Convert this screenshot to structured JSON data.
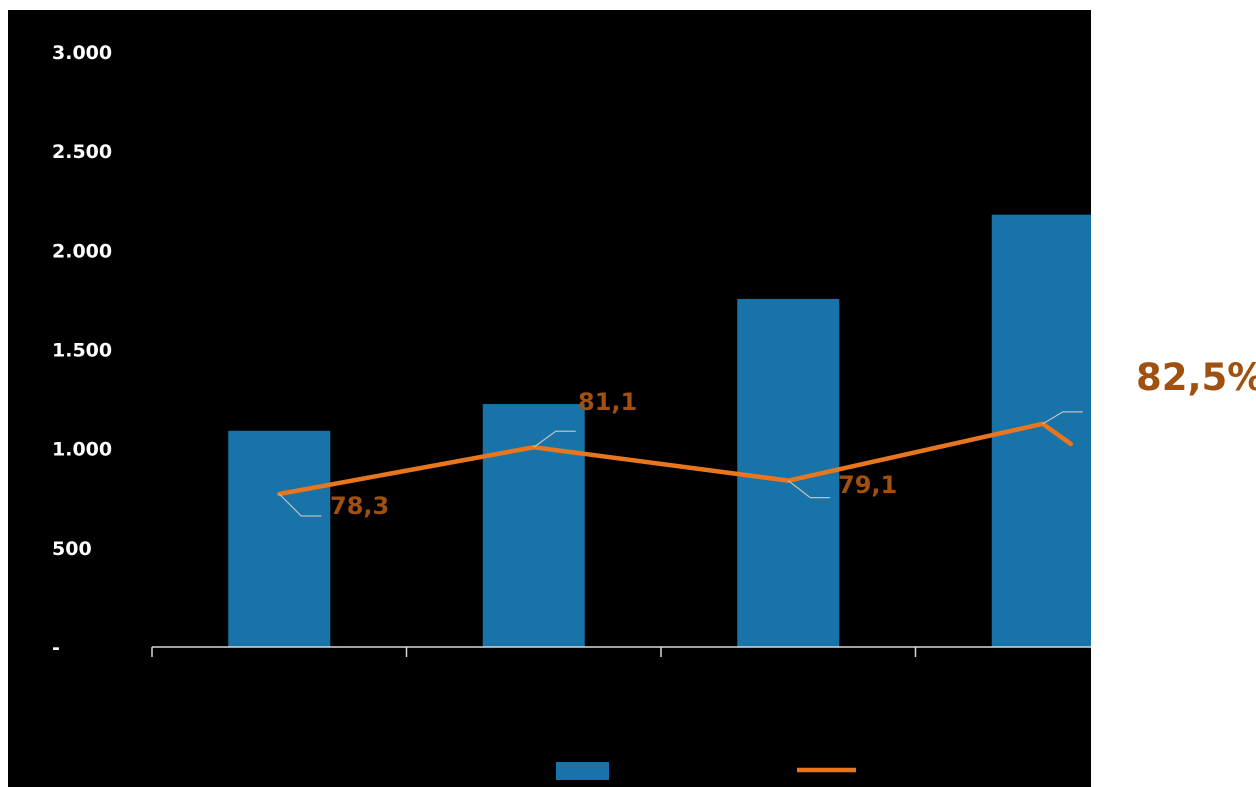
{
  "chart_data": {
    "type": "bar",
    "title": "",
    "categories": [
      "",
      "",
      "",
      ""
    ],
    "bar_series": {
      "name": "",
      "values": [
        1090,
        1225,
        1755,
        2180
      ],
      "color": "#1773A8"
    },
    "line_series": {
      "name": "",
      "values": [
        78.3,
        81.1,
        79.1,
        82.5
      ],
      "labels": [
        "78,3",
        "81,1",
        "79,1",
        "82,5%"
      ],
      "color": "#E8761E",
      "label_color": "#A0500F"
    },
    "ylim": [
      0,
      3000
    ],
    "yticks": [
      0,
      500,
      1000,
      1500,
      2000,
      2500,
      3000
    ],
    "ytick_labels": [
      "-",
      "500",
      "1.000",
      "1.500",
      "2.000",
      "2.500",
      "3.000"
    ],
    "grid": false,
    "legend": {
      "position": "bottom",
      "entries": [
        "bar",
        "line"
      ]
    },
    "background": "#000000",
    "text_color": "#ffffff"
  }
}
